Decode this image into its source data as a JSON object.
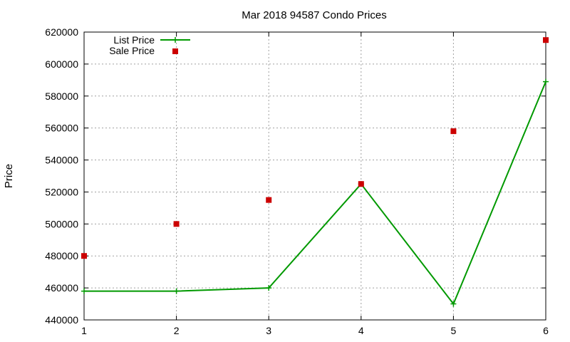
{
  "chart_data": {
    "type": "line",
    "title": "Mar 2018 94587 Condo Prices",
    "xlabel": "",
    "ylabel": "Price",
    "x": [
      1,
      2,
      3,
      4,
      5,
      6
    ],
    "xlim": [
      1,
      6
    ],
    "ylim": [
      440000,
      620000
    ],
    "xticks": [
      "1",
      "2",
      "3",
      "4",
      "5",
      "6"
    ],
    "yticks": [
      "440000",
      "460000",
      "480000",
      "500000",
      "520000",
      "540000",
      "560000",
      "580000",
      "600000",
      "620000"
    ],
    "grid": true,
    "legend_position": "top-left",
    "series": [
      {
        "name": "List Price",
        "style": "line-with-plus-markers",
        "color": "#009900",
        "values": [
          458000,
          458000,
          460000,
          525000,
          450000,
          589000
        ]
      },
      {
        "name": "Sale Price",
        "style": "square-markers",
        "color": "#cc0000",
        "values": [
          480000,
          500000,
          515000,
          525000,
          558000,
          615000
        ]
      }
    ]
  }
}
